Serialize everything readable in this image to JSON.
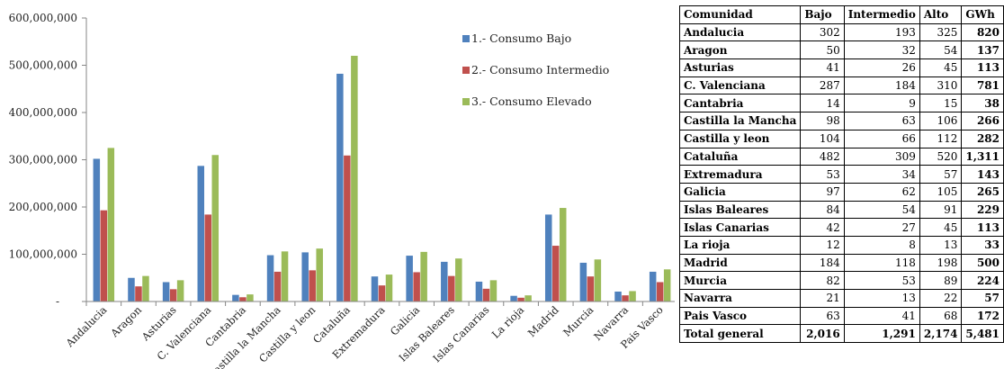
{
  "chart_data": {
    "type": "bar",
    "categories": [
      "Andalucia",
      "Aragon",
      "Asturias",
      "C. Valenciana",
      "Cantabria",
      "Castilla la Mancha",
      "Castilla y leon",
      "Cataluña",
      "Extremadura",
      "Galicia",
      "Islas Baleares",
      "Islas Canarias",
      "La rioja",
      "Madrid",
      "Murcia",
      "Navarra",
      "Pais Vasco"
    ],
    "series": [
      {
        "name": "1.- Consumo Bajo",
        "color": "#4f81bd",
        "values": [
          302000000,
          50000000,
          41000000,
          287000000,
          14000000,
          98000000,
          104000000,
          482000000,
          53000000,
          97000000,
          84000000,
          42000000,
          12000000,
          184000000,
          82000000,
          21000000,
          63000000
        ]
      },
      {
        "name": "2.- Consumo Intermedio",
        "color": "#c0504d",
        "values": [
          193000000,
          32000000,
          26000000,
          184000000,
          9000000,
          63000000,
          66000000,
          309000000,
          34000000,
          62000000,
          54000000,
          27000000,
          8000000,
          118000000,
          53000000,
          13000000,
          41000000
        ]
      },
      {
        "name": "3.- Consumo Elevado",
        "color": "#9bbb59",
        "values": [
          325000000,
          54000000,
          45000000,
          310000000,
          15000000,
          106000000,
          112000000,
          520000000,
          57000000,
          105000000,
          91000000,
          45000000,
          13000000,
          198000000,
          89000000,
          22000000,
          68000000
        ]
      }
    ],
    "yticks": [
      0,
      100000000,
      200000000,
      300000000,
      400000000,
      500000000,
      600000000
    ],
    "ytick_labels": [
      "-",
      "100,000,000",
      "200,000,000",
      "300,000,000",
      "400,000,000",
      "500,000,000",
      "600,000,000"
    ],
    "ylim": [
      0,
      600000000
    ],
    "grid": false,
    "legend_position": "right"
  },
  "table": {
    "headers": [
      "Comunidad",
      "Bajo",
      "Intermedio",
      "Alto",
      "GWh"
    ],
    "rows": [
      [
        "Andalucia",
        "302",
        "193",
        "325",
        "820"
      ],
      [
        "Aragon",
        "50",
        "32",
        "54",
        "137"
      ],
      [
        "Asturias",
        "41",
        "26",
        "45",
        "113"
      ],
      [
        "C. Valenciana",
        "287",
        "184",
        "310",
        "781"
      ],
      [
        "Cantabria",
        "14",
        "9",
        "15",
        "38"
      ],
      [
        "Castilla la Mancha",
        "98",
        "63",
        "106",
        "266"
      ],
      [
        "Castilla y leon",
        "104",
        "66",
        "112",
        "282"
      ],
      [
        "Cataluña",
        "482",
        "309",
        "520",
        "1,311"
      ],
      [
        "Extremadura",
        "53",
        "34",
        "57",
        "143"
      ],
      [
        "Galicia",
        "97",
        "62",
        "105",
        "265"
      ],
      [
        "Islas Baleares",
        "84",
        "54",
        "91",
        "229"
      ],
      [
        "Islas Canarias",
        "42",
        "27",
        "45",
        "113"
      ],
      [
        "La rioja",
        "12",
        "8",
        "13",
        "33"
      ],
      [
        "Madrid",
        "184",
        "118",
        "198",
        "500"
      ],
      [
        "Murcia",
        "82",
        "53",
        "89",
        "224"
      ],
      [
        "Navarra",
        "21",
        "13",
        "22",
        "57"
      ],
      [
        "Pais Vasco",
        "63",
        "41",
        "68",
        "172"
      ]
    ],
    "total": [
      "Total general",
      "2,016",
      "1,291",
      "2,174",
      "5,481"
    ]
  }
}
